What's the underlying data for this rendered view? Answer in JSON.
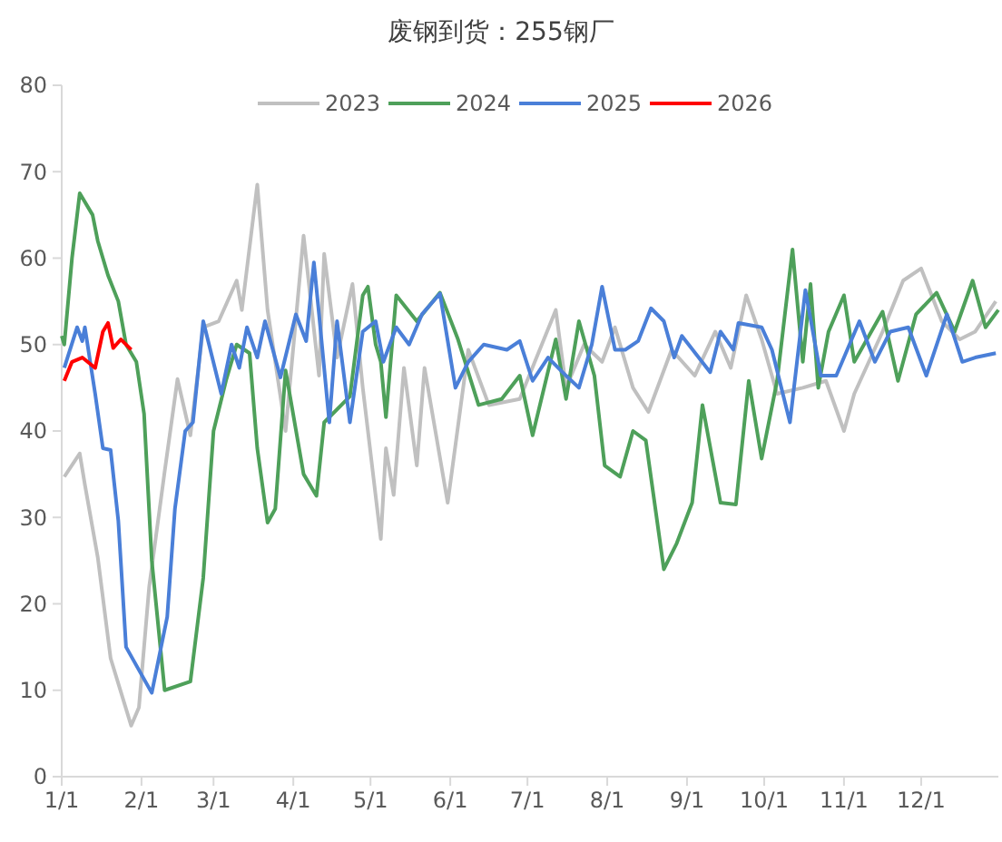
{
  "chart_data": {
    "type": "line",
    "title": "废钢到货：255钢厂",
    "legend": "top",
    "grid": false,
    "line_style": "solid",
    "marker": "none",
    "xlim": [
      "--01-01",
      "--12-31"
    ],
    "xticks": [
      {
        "value": "--01-01",
        "label": "1/1"
      },
      {
        "value": "--02-01",
        "label": "2/1"
      },
      {
        "value": "--03-01",
        "label": "3/1"
      },
      {
        "value": "--04-01",
        "label": "4/1"
      },
      {
        "value": "--05-01",
        "label": "5/1"
      },
      {
        "value": "--06-01",
        "label": "6/1"
      },
      {
        "value": "--07-01",
        "label": "7/1"
      },
      {
        "value": "--08-01",
        "label": "8/1"
      },
      {
        "value": "--09-01",
        "label": "9/1"
      },
      {
        "value": "--10-01",
        "label": "10/1"
      },
      {
        "value": "--11-01",
        "label": "11/1"
      },
      {
        "value": "--12-01",
        "label": "12/1"
      }
    ],
    "ylim": [
      0,
      80
    ],
    "yticks": [
      0,
      10,
      20,
      30,
      40,
      50,
      60,
      70,
      80
    ],
    "series": [
      {
        "name": "2023",
        "color": "#c0c0c0",
        "x": [
          "--01-02",
          "--01-08",
          "--01-10",
          "--01-15",
          "--01-20",
          "--01-28",
          "--01-31",
          "--02-04",
          "--02-10",
          "--02-15",
          "--02-20",
          "--02-25",
          "--03-03",
          "--03-10",
          "--03-12",
          "--03-18",
          "--03-22",
          "--03-29",
          "--04-05",
          "--04-11",
          "--04-13",
          "--04-18",
          "--04-24",
          "--04-28",
          "--05-05",
          "--05-07",
          "--05-10",
          "--05-14",
          "--05-19",
          "--05-22",
          "--05-31",
          "--06-08",
          "--06-16",
          "--06-28",
          "--07-12",
          "--07-16",
          "--07-23",
          "--07-30",
          "--08-04",
          "--08-11",
          "--08-17",
          "--08-26",
          "--09-04",
          "--09-12",
          "--09-18",
          "--09-24",
          "--09-30",
          "--10-06",
          "--10-16",
          "--10-25",
          "--11-01",
          "--11-05",
          "--11-16",
          "--11-24",
          "--12-01",
          "--12-09",
          "--12-16",
          "--12-22",
          "--12-30"
        ],
        "values": [
          34.7,
          37.4,
          33.8,
          25.4,
          13.7,
          5.9,
          8,
          22,
          35.3,
          46,
          39.5,
          52,
          52.7,
          57.4,
          54,
          68.5,
          54,
          40,
          62.6,
          46.4,
          60.5,
          48.5,
          57,
          45,
          27.5,
          38,
          32.6,
          47.3,
          36,
          47.3,
          31.7,
          49.4,
          43,
          43.7,
          54,
          45,
          50,
          48,
          52,
          45,
          42.2,
          49.4,
          46.4,
          51.5,
          47.3,
          55.7,
          50.6,
          44.3,
          45,
          45.8,
          40,
          44.3,
          51.5,
          57.4,
          58.8,
          52.7,
          50.6,
          51.5,
          55
        ]
      },
      {
        "name": "2024",
        "color": "#4ea05a",
        "x": [
          "--01-01",
          "--01-02",
          "--01-05",
          "--01-08",
          "--01-13",
          "--01-15",
          "--01-19",
          "--01-23",
          "--01-26",
          "--01-30",
          "--02-02",
          "--02-05",
          "--02-10",
          "--02-20",
          "--02-25",
          "--03-01",
          "--03-06",
          "--03-10",
          "--03-15",
          "--03-18",
          "--03-22",
          "--03-25",
          "--03-29",
          "--04-05",
          "--04-10",
          "--04-13",
          "--04-23",
          "--04-28",
          "--04-30",
          "--05-03",
          "--05-05",
          "--05-07",
          "--05-11",
          "--05-19",
          "--05-28",
          "--06-04",
          "--06-12",
          "--06-21",
          "--06-28",
          "--07-03",
          "--07-12",
          "--07-16",
          "--07-21",
          "--07-27",
          "--07-31",
          "--08-06",
          "--08-11",
          "--08-16",
          "--08-23",
          "--08-28",
          "--09-03",
          "--09-07",
          "--09-14",
          "--09-20",
          "--09-25",
          "--09-30",
          "--10-06",
          "--10-12",
          "--10-16",
          "--10-19",
          "--10-22",
          "--10-26",
          "--11-01",
          "--11-05",
          "--11-16",
          "--11-22",
          "--11-29",
          "--12-07",
          "--12-14",
          "--12-21",
          "--12-26",
          "--12-31"
        ],
        "values": [
          51,
          50,
          60,
          67.5,
          65,
          62,
          58,
          55,
          50,
          48,
          42,
          25,
          10,
          11,
          23,
          40,
          46,
          50,
          49,
          38,
          29.4,
          31,
          47,
          35,
          32.5,
          41,
          44,
          55.7,
          56.7,
          50,
          48,
          41.6,
          55.7,
          52.7,
          56,
          50.6,
          43,
          43.7,
          46.4,
          39.5,
          50.6,
          43.7,
          52.7,
          46.4,
          36,
          34.7,
          40,
          38.9,
          24,
          27,
          31.7,
          43,
          31.7,
          31.5,
          45.8,
          36.8,
          45.8,
          61,
          48,
          57,
          45,
          51.5,
          55.7,
          48,
          53.8,
          45.8,
          53.5,
          56,
          51.5,
          57.4,
          52,
          54
        ]
      },
      {
        "name": "2025",
        "color": "#4a7fd8",
        "x": [
          "--01-02",
          "--01-07",
          "--01-09",
          "--01-10",
          "--01-14",
          "--01-17",
          "--01-20",
          "--01-23",
          "--01-26",
          "--02-05",
          "--02-11",
          "--02-14",
          "--02-18",
          "--02-21",
          "--02-25",
          "--03-04",
          "--03-08",
          "--03-11",
          "--03-14",
          "--03-18",
          "--03-21",
          "--03-27",
          "--04-02",
          "--04-06",
          "--04-09",
          "--04-11",
          "--04-15",
          "--04-18",
          "--04-23",
          "--04-28",
          "--05-03",
          "--05-06",
          "--05-11",
          "--05-16",
          "--05-21",
          "--05-28",
          "--06-03",
          "--06-08",
          "--06-14",
          "--06-23",
          "--06-28",
          "--07-03",
          "--07-09",
          "--07-16",
          "--07-21",
          "--07-26",
          "--07-30",
          "--08-04",
          "--08-08",
          "--08-13",
          "--08-18",
          "--08-23",
          "--08-27",
          "--08-30",
          "--09-10",
          "--09-14",
          "--09-19",
          "--09-21",
          "--09-30",
          "--10-04",
          "--10-11",
          "--10-17",
          "--10-23",
          "--10-29",
          "--11-07",
          "--11-13",
          "--11-19",
          "--11-26",
          "--12-03",
          "--12-11",
          "--12-17",
          "--12-22",
          "--12-30"
        ],
        "values": [
          47.3,
          52,
          50.4,
          52,
          44.3,
          38,
          37.8,
          29.6,
          15,
          9.7,
          18.5,
          31,
          40,
          41,
          52.7,
          44.3,
          50,
          47.3,
          52,
          48.5,
          52.7,
          46.2,
          53.5,
          50.4,
          59.5,
          53.5,
          41,
          52.7,
          41,
          51.5,
          52.7,
          48,
          52,
          50,
          53.5,
          55.9,
          45,
          48,
          50,
          49.4,
          50.4,
          45.8,
          48.5,
          46.4,
          45,
          50,
          56.7,
          49.4,
          49.4,
          50.4,
          54.2,
          52.7,
          48.5,
          51,
          46.8,
          51.5,
          49.4,
          52.5,
          52,
          49.4,
          41,
          56.3,
          46.4,
          46.4,
          52.7,
          48,
          51.5,
          52,
          46.4,
          53.5,
          48,
          48.5,
          49
        ]
      },
      {
        "name": "2026",
        "color": "#ff0000",
        "x": [
          "--01-02",
          "--01-05",
          "--01-09",
          "--01-14",
          "--01-17",
          "--01-19",
          "--01-21",
          "--01-24",
          "--01-28"
        ],
        "values": [
          45.8,
          48,
          48.5,
          47.3,
          51.5,
          52.5,
          49.6,
          50.6,
          49.4
        ]
      }
    ]
  }
}
